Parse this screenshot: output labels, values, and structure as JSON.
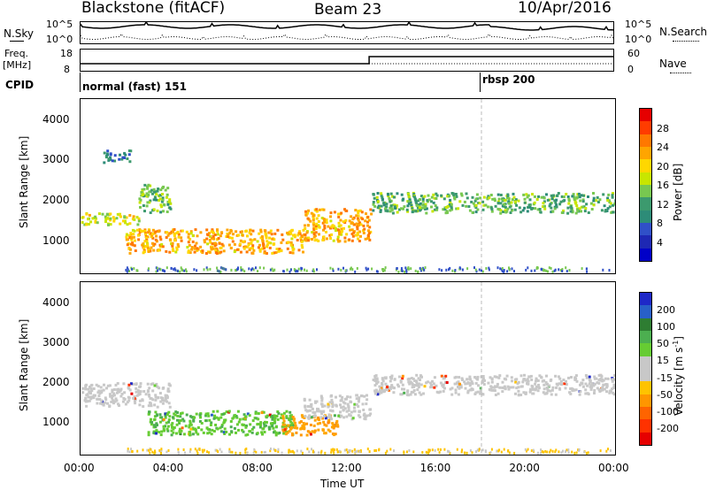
{
  "header": {
    "station": "Blackstone (fitACF)",
    "beam": "Beam 23",
    "date": "10/Apr/2016"
  },
  "nsky": {
    "label": "N.Sky",
    "tick_hi": "10^5",
    "tick_lo": "10^0",
    "right_label": "N.Search",
    "right_tick_hi": "10^5",
    "right_tick_lo": "10^0"
  },
  "freq": {
    "label": "Freq.",
    "unit": "[MHz]",
    "tick_hi": "18",
    "tick_lo": "8",
    "right_label": "Nave",
    "right_tick_hi": "60",
    "right_tick_lo": "0"
  },
  "cpid": {
    "label": "CPID",
    "mode1": "normal (fast) 151",
    "mode2": "rbsp 200"
  },
  "power_panel": {
    "ylabel": "Slant Range [km]",
    "yticks": [
      "4000",
      "3000",
      "2000",
      "1000"
    ],
    "cbar_label": "Power [dB]",
    "cbar_ticks": [
      "28",
      "24",
      "20",
      "16",
      "12",
      "8",
      "4"
    ],
    "cbar_colors": [
      "#e60000",
      "#ff3c00",
      "#ff7800",
      "#ffa500",
      "#ffd700",
      "#c8e600",
      "#78c850",
      "#3c9a6e",
      "#2d8c78",
      "#3050c8",
      "#1e28b4",
      "#0000c8"
    ]
  },
  "velocity_panel": {
    "ylabel": "Slant Range [km]",
    "yticks": [
      "4000",
      "3000",
      "2000",
      "1000"
    ],
    "cbar_label": "Velocity [m s",
    "cbar_label_sup": "-1",
    "cbar_label_end": "]",
    "cbar_ticks": [
      "200",
      "100",
      "50",
      "15",
      "-15",
      "-50",
      "-100",
      "-200"
    ],
    "cbar_colors": [
      "#1e28c8",
      "#2860c8",
      "#2e7d32",
      "#4caf50",
      "#66cc33",
      "#c8c8c8",
      "#c8c8c8",
      "#ffc300",
      "#ff9600",
      "#ff6400",
      "#ff3200",
      "#e60000"
    ]
  },
  "xaxis": {
    "ticks": [
      "00:00",
      "04:00",
      "08:00",
      "12:00",
      "16:00",
      "20:00",
      "00:00"
    ],
    "label": "Time UT"
  },
  "chart_data": {
    "type": "heatmap",
    "xlim": [
      0,
      24
    ],
    "ylim": [
      180,
      4500
    ],
    "panels": [
      "Power",
      "Velocity"
    ],
    "mode_change_hour": 18,
    "freq_step_hour": 13,
    "power_features": [
      {
        "t0": 0.0,
        "t1": 2.6,
        "r0": 1400,
        "r1": 1700,
        "level_db": 16
      },
      {
        "t0": 2.6,
        "t1": 4.0,
        "r0": 1700,
        "r1": 2400,
        "level_db": 12
      },
      {
        "t0": 1.0,
        "t1": 2.2,
        "r0": 2950,
        "r1": 3250,
        "level_db": 8
      },
      {
        "t0": 2.0,
        "t1": 10.0,
        "r0": 700,
        "r1": 1300,
        "level_db": 20
      },
      {
        "t0": 10.0,
        "t1": 13.0,
        "r0": 1000,
        "r1": 1800,
        "level_db": 20
      },
      {
        "t0": 13.0,
        "t1": 24.0,
        "r0": 1700,
        "r1": 2200,
        "level_db": 12
      }
    ],
    "velocity_features": [
      {
        "t0": 0.0,
        "t1": 4.0,
        "r0": 1400,
        "r1": 2000,
        "velocity": 0
      },
      {
        "t0": 3.0,
        "t1": 9.5,
        "r0": 700,
        "r1": 1300,
        "velocity": 30
      },
      {
        "t0": 9.0,
        "t1": 11.5,
        "r0": 700,
        "r1": 1200,
        "velocity": -40
      },
      {
        "t0": 10.0,
        "t1": 13.0,
        "r0": 1100,
        "r1": 1700,
        "velocity": 0
      },
      {
        "t0": 13.0,
        "t1": 24.0,
        "r0": 1700,
        "r1": 2200,
        "velocity": 0
      }
    ]
  }
}
